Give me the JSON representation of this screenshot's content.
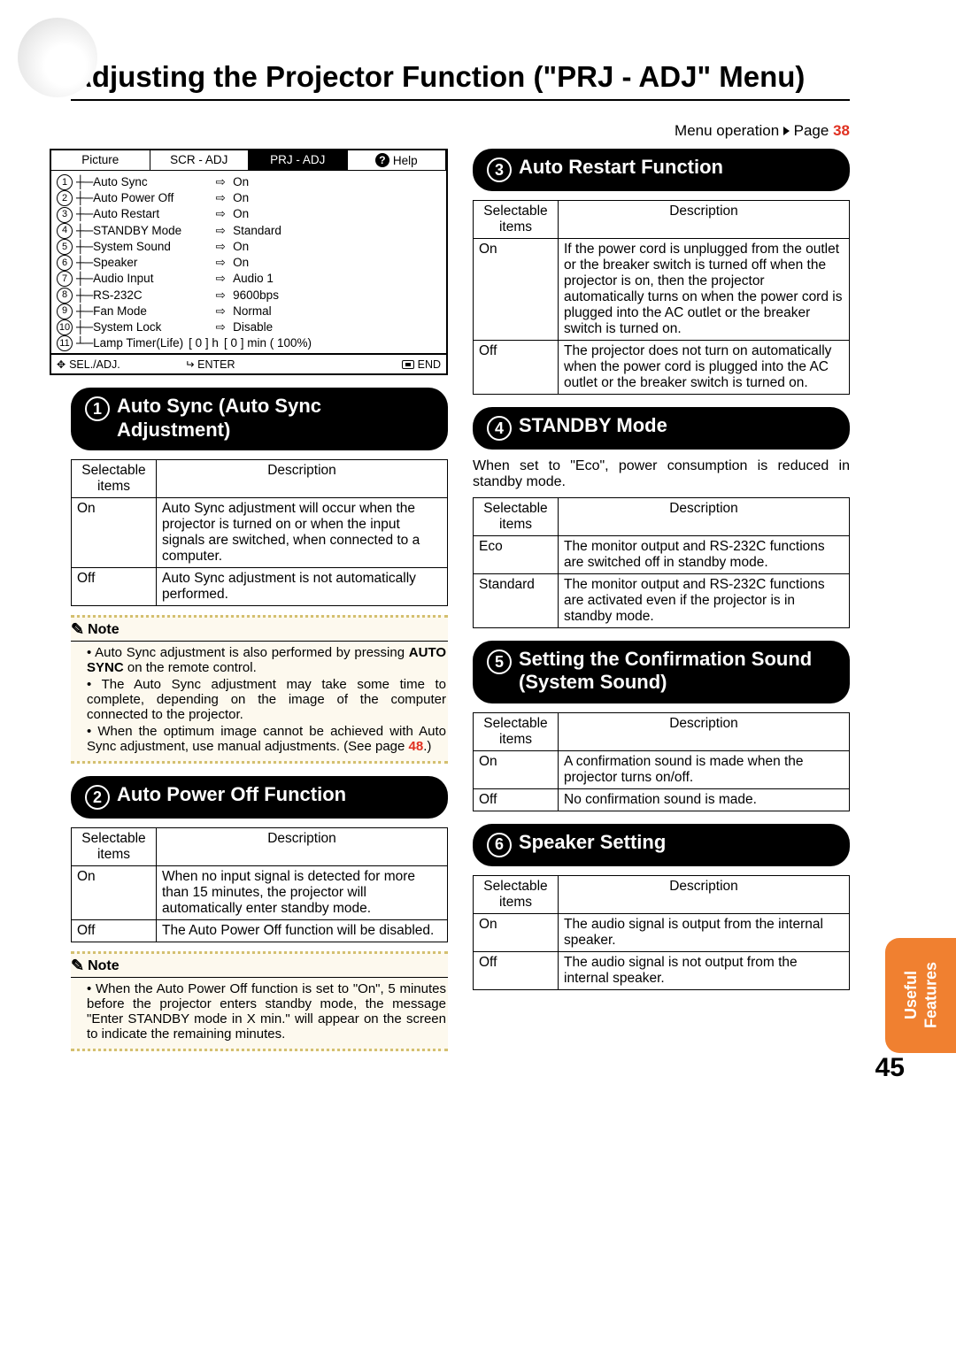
{
  "page": {
    "title": "Adjusting the Projector Function (\"PRJ - ADJ\" Menu)",
    "menu_operation": "Menu operation",
    "menu_operation_page_label": "Page",
    "menu_operation_page": "38",
    "page_number": "45",
    "side_tab_line1": "Useful",
    "side_tab_line2": "Features"
  },
  "osd": {
    "tabs": {
      "picture": "Picture",
      "scr": "SCR - ADJ",
      "prj": "PRJ - ADJ",
      "help": "Help"
    },
    "items": [
      {
        "n": "1",
        "label": "Auto Sync",
        "value": "On"
      },
      {
        "n": "2",
        "label": "Auto Power Off",
        "value": "On"
      },
      {
        "n": "3",
        "label": "Auto Restart",
        "value": "On"
      },
      {
        "n": "4",
        "label": "STANDBY Mode",
        "value": "Standard"
      },
      {
        "n": "5",
        "label": "System Sound",
        "value": "On"
      },
      {
        "n": "6",
        "label": "Speaker",
        "value": "On"
      },
      {
        "n": "7",
        "label": "Audio Input",
        "value": "Audio 1"
      },
      {
        "n": "8",
        "label": "RS-232C",
        "value": "9600bps"
      },
      {
        "n": "9",
        "label": "Fan Mode",
        "value": "Normal"
      },
      {
        "n": "10",
        "label": "System Lock",
        "value": "Disable"
      }
    ],
    "lamp_n": "11",
    "lamp_label": "Lamp Timer(Life)",
    "lamp_h": "[        0 ] h",
    "lamp_min": "[        0 ] min ( 100%)",
    "foot": {
      "sel": "SEL./ADJ.",
      "enter": "ENTER",
      "end": "END"
    }
  },
  "sections": {
    "s1": {
      "num": "1",
      "title": "Auto Sync (Auto Sync Adjustment)",
      "th1": "Selectable items",
      "th2": "Description",
      "rows": [
        {
          "k": "On",
          "v": "Auto Sync adjustment will occur when the projector is turned on or when the input signals are switched, when connected to a computer."
        },
        {
          "k": "Off",
          "v": "Auto Sync adjustment is not automatically performed."
        }
      ],
      "note_label": "Note",
      "notes": [
        "Auto Sync adjustment is also performed by pressing <b>AUTO SYNC</b> on the remote control.",
        "The Auto Sync adjustment may take some time to complete, depending on the image of the computer connected to the projector.",
        "When the optimum image cannot be achieved with Auto Sync adjustment, use manual adjustments. (See page <span class=\"red\">48</span>.)"
      ]
    },
    "s2": {
      "num": "2",
      "title": "Auto Power Off Function",
      "th1": "Selectable items",
      "th2": "Description",
      "rows": [
        {
          "k": "On",
          "v": "When no input signal is detected for more than 15 minutes, the projector will automatically enter standby mode."
        },
        {
          "k": "Off",
          "v": "The Auto Power Off function will be disabled."
        }
      ],
      "note_label": "Note",
      "notes": [
        "When the Auto Power Off function is set to \"On\", 5 minutes before the projector enters standby mode, the message \"Enter STANDBY mode in X min.\" will appear on the screen to indicate the remaining minutes."
      ]
    },
    "s3": {
      "num": "3",
      "title": "Auto Restart Function",
      "th1": "Selectable items",
      "th2": "Description",
      "rows": [
        {
          "k": "On",
          "v": "If the power cord is unplugged from the outlet or the breaker switch is turned off when the projector is on, then the projector automatically turns on when the power cord is plugged into the AC outlet or the breaker switch is turned on."
        },
        {
          "k": "Off",
          "v": "The projector does not turn on automatically when the power cord is plugged into the AC outlet or the breaker switch is turned on."
        }
      ]
    },
    "s4": {
      "num": "4",
      "title": "STANDBY Mode",
      "intro": "When set to \"Eco\", power consumption is reduced in standby mode.",
      "th1": "Selectable items",
      "th2": "Description",
      "rows": [
        {
          "k": "Eco",
          "v": "The monitor output and RS-232C functions are switched off in standby mode."
        },
        {
          "k": "Standard",
          "v": "The monitor output and RS-232C functions are activated even if the projector is in standby mode."
        }
      ]
    },
    "s5": {
      "num": "5",
      "title": "Setting the Confirmation Sound (System Sound)",
      "th1": "Selectable items",
      "th2": "Description",
      "rows": [
        {
          "k": "On",
          "v": "A confirmation sound is made when the projector turns on/off."
        },
        {
          "k": "Off",
          "v": "No confirmation sound is made."
        }
      ]
    },
    "s6": {
      "num": "6",
      "title": "Speaker Setting",
      "th1": "Selectable items",
      "th2": "Description",
      "rows": [
        {
          "k": "On",
          "v": "The audio signal is output from the internal speaker."
        },
        {
          "k": "Off",
          "v": "The audio signal is not output from the internal speaker."
        }
      ]
    }
  },
  "colors": {
    "accent_orange": "#f08030",
    "link_red": "#e03020",
    "note_bg": "#fdf9ee",
    "note_border": "#d4c070"
  }
}
